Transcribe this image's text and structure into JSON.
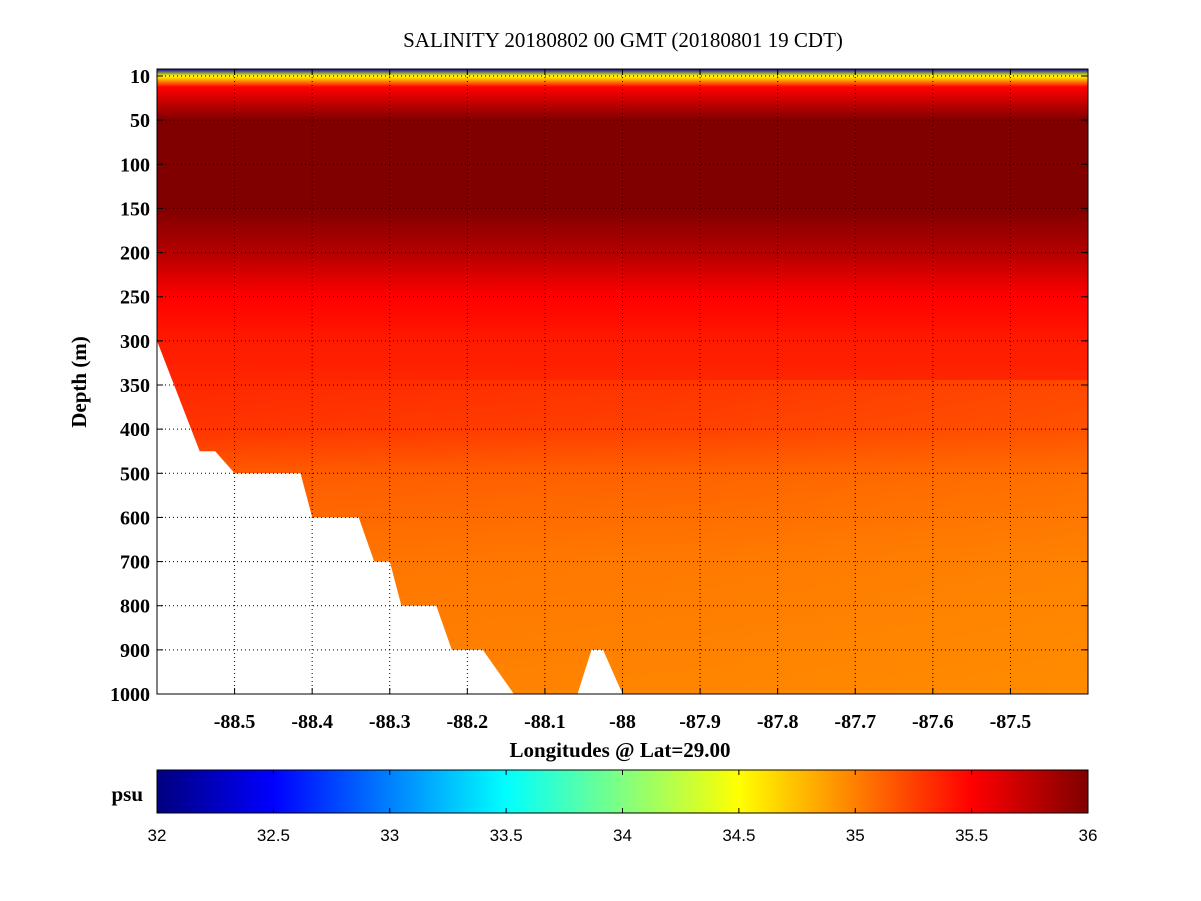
{
  "chart_data": {
    "type": "heatmap",
    "title": "SALINITY 20180802 00 GMT (20180801 19 CDT)",
    "xlabel": "Longitudes @ Lat=29.00",
    "ylabel": "Depth (m)",
    "x_ticks": [
      -88.5,
      -88.4,
      -88.3,
      -88.2,
      -88.1,
      -88,
      -87.9,
      -87.8,
      -87.7,
      -87.6,
      -87.5
    ],
    "x_tick_labels": [
      "-88.5",
      "-88.4",
      "-88.3",
      "-88.2",
      "-88.1",
      "-88",
      "-87.9",
      "-87.8",
      "-87.7",
      "-87.6",
      "-87.5"
    ],
    "y_ticks": [
      10,
      50,
      100,
      150,
      200,
      250,
      300,
      350,
      400,
      500,
      600,
      700,
      800,
      900,
      1000
    ],
    "y_tick_labels": [
      "10",
      "50",
      "100",
      "150",
      "200",
      "250",
      "300",
      "350",
      "400",
      "500",
      "600",
      "700",
      "800",
      "900",
      "1000"
    ],
    "xlim": [
      -88.6,
      -87.4
    ],
    "ylim": [
      1000,
      0
    ],
    "grid": true,
    "colorbar": {
      "label": "psu",
      "range": [
        32,
        36
      ],
      "ticks": [
        32,
        32.5,
        33,
        33.5,
        34,
        34.5,
        35,
        35.5,
        36
      ],
      "tick_labels": [
        "32",
        "32.5",
        "33",
        "33.5",
        "34",
        "34.5",
        "35",
        "35.5",
        "36"
      ],
      "colormap": "jet"
    },
    "depth_profile": [
      {
        "depth": 0,
        "salinity": 32.2
      },
      {
        "depth": 10,
        "salinity": 34.5
      },
      {
        "depth": 20,
        "salinity": 35.5
      },
      {
        "depth": 50,
        "salinity": 36.0
      },
      {
        "depth": 150,
        "salinity": 36.0
      },
      {
        "depth": 200,
        "salinity": 35.8
      },
      {
        "depth": 250,
        "salinity": 35.5
      },
      {
        "depth": 300,
        "salinity": 35.4
      },
      {
        "depth": 400,
        "salinity": 35.3
      },
      {
        "depth": 500,
        "salinity": 35.15
      },
      {
        "depth": 700,
        "salinity": 35.05
      },
      {
        "depth": 1000,
        "salinity": 35.0
      }
    ],
    "seafloor": [
      {
        "lon": -88.6,
        "depth": 300
      },
      {
        "lon": -88.545,
        "depth": 450
      },
      {
        "lon": -88.525,
        "depth": 450
      },
      {
        "lon": -88.5,
        "depth": 500
      },
      {
        "lon": -88.415,
        "depth": 500
      },
      {
        "lon": -88.4,
        "depth": 600
      },
      {
        "lon": -88.34,
        "depth": 600
      },
      {
        "lon": -88.32,
        "depth": 700
      },
      {
        "lon": -88.3,
        "depth": 700
      },
      {
        "lon": -88.285,
        "depth": 800
      },
      {
        "lon": -88.24,
        "depth": 800
      },
      {
        "lon": -88.22,
        "depth": 900
      },
      {
        "lon": -88.18,
        "depth": 900
      },
      {
        "lon": -88.14,
        "depth": 1000
      },
      {
        "lon": -88.058,
        "depth": 1000
      },
      {
        "lon": -88.04,
        "depth": 900
      },
      {
        "lon": -88.025,
        "depth": 900
      },
      {
        "lon": -88.0,
        "depth": 1000
      }
    ]
  }
}
